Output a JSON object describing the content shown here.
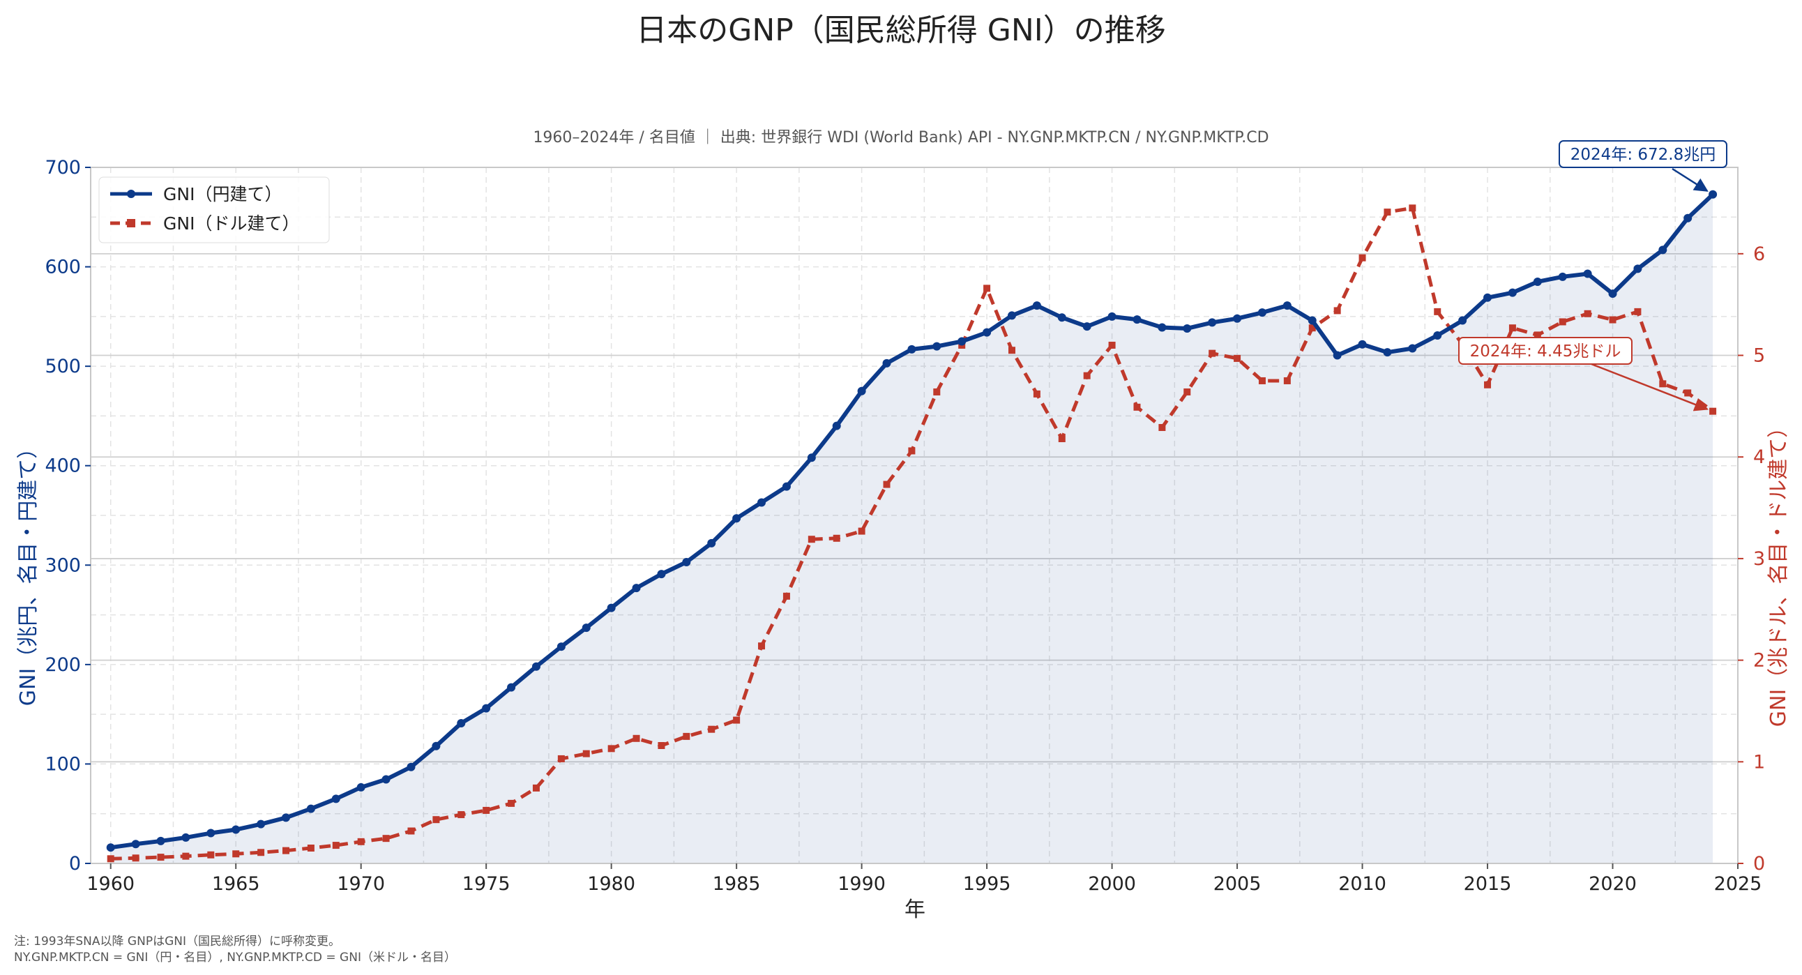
{
  "chart_data": {
    "type": "line",
    "title": "日本のGNP（国民総所得 GNI）の推移",
    "subtitle": "1960–2024年 / 名目値 ｜ 出典: 世界銀行 WDI (World Bank) API - NY.GNP.MKTP.CN / NY.GNP.MKTP.CD",
    "xlabel": "年",
    "ylabel_left": "GNI（兆円、名目・円建て）",
    "ylabel_right": "GNI（兆ドル、名目・ドル建て）",
    "xlim": [
      1959.2,
      2025
    ],
    "ylim_left": [
      0,
      700
    ],
    "ylim_right": [
      0,
      6.85
    ],
    "x_ticks": [
      1960,
      1965,
      1970,
      1975,
      1980,
      1985,
      1990,
      1995,
      2000,
      2005,
      2010,
      2015,
      2020,
      2025
    ],
    "y_ticks_left": [
      0,
      100,
      200,
      300,
      400,
      500,
      600,
      700
    ],
    "y_ticks_right": [
      0,
      1,
      2,
      3,
      4,
      5,
      6
    ],
    "grid": true,
    "legend_position": "top-left",
    "x": [
      1960,
      1961,
      1962,
      1963,
      1964,
      1965,
      1966,
      1967,
      1968,
      1969,
      1970,
      1971,
      1972,
      1973,
      1974,
      1975,
      1976,
      1977,
      1978,
      1979,
      1980,
      1981,
      1982,
      1983,
      1984,
      1985,
      1986,
      1987,
      1988,
      1989,
      1990,
      1991,
      1992,
      1993,
      1994,
      1995,
      1996,
      1997,
      1998,
      1999,
      2000,
      2001,
      2002,
      2003,
      2004,
      2005,
      2006,
      2007,
      2008,
      2009,
      2010,
      2011,
      2012,
      2013,
      2014,
      2015,
      2016,
      2017,
      2018,
      2019,
      2020,
      2021,
      2022,
      2023,
      2024
    ],
    "series": [
      {
        "name": "GNI（円建て）",
        "axis": "left",
        "color": "#0c3a8a",
        "style": "solid",
        "marker": "circle",
        "values": [
          16,
          19.5,
          22.5,
          26,
          30.5,
          34,
          39.5,
          46,
          55,
          65,
          76.5,
          84.5,
          97,
          118,
          141,
          156,
          177,
          198,
          218,
          237,
          257,
          277,
          291,
          303,
          322,
          347,
          363,
          379,
          408,
          440,
          475,
          503,
          517,
          520,
          525,
          534,
          551,
          561,
          549,
          540,
          550,
          547,
          539,
          538,
          544,
          548,
          554,
          561,
          546,
          511,
          522,
          514,
          518,
          531,
          546,
          569,
          574,
          585,
          590,
          593,
          573,
          598,
          617,
          649,
          672.8
        ]
      },
      {
        "name": "GNI（ドル建て）",
        "axis": "right",
        "color": "#c0392b",
        "style": "dashed",
        "marker": "square",
        "values": [
          0.046,
          0.053,
          0.061,
          0.071,
          0.084,
          0.094,
          0.108,
          0.126,
          0.151,
          0.178,
          0.214,
          0.246,
          0.319,
          0.431,
          0.48,
          0.522,
          0.591,
          0.742,
          1.03,
          1.08,
          1.13,
          1.23,
          1.16,
          1.25,
          1.32,
          1.41,
          2.14,
          2.63,
          3.19,
          3.2,
          3.27,
          3.73,
          4.06,
          4.64,
          5.1,
          5.66,
          5.05,
          4.62,
          4.18,
          4.8,
          5.1,
          4.49,
          4.29,
          4.64,
          5.02,
          4.97,
          4.75,
          4.75,
          5.27,
          5.44,
          5.96,
          6.41,
          6.45,
          5.43,
          5.11,
          4.71,
          5.27,
          5.2,
          5.33,
          5.41,
          5.35,
          5.43,
          4.72,
          4.63,
          4.45
        ]
      }
    ],
    "annotations": [
      {
        "text": "2024年: 672.8兆円",
        "x": 2024,
        "y": 672.8,
        "axis": "left"
      },
      {
        "text": "2024年: 4.45兆ドル",
        "x": 2024,
        "y": 4.45,
        "axis": "right"
      }
    ]
  },
  "notes": [
    "注: 1993年SNA以降 GNPはGNI（国民総所得）に呼称変更。",
    "NY.GNP.MKTP.CN = GNI（円・名目）, NY.GNP.MKTP.CD = GNI（米ドル・名目）"
  ]
}
